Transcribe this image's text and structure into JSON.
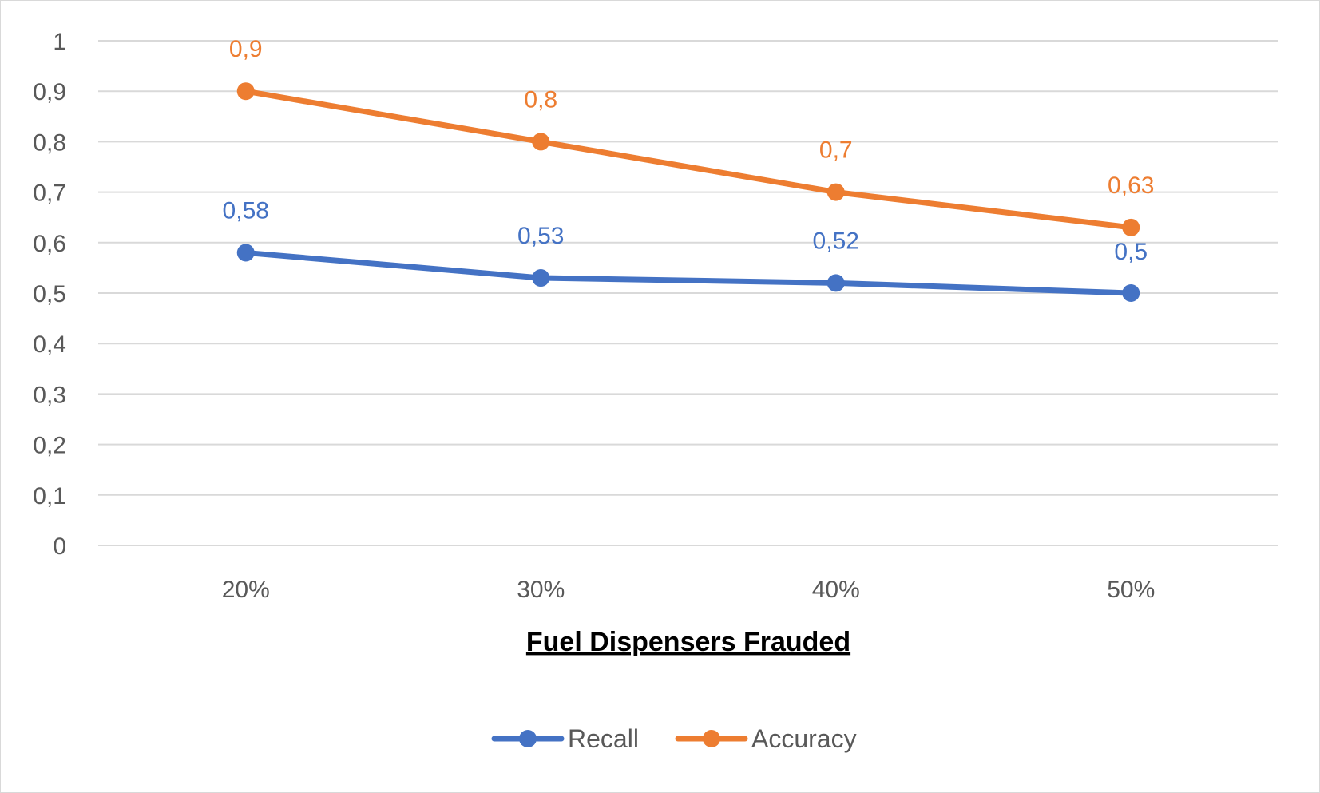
{
  "chart_data": {
    "type": "line",
    "title": "",
    "xlabel": "Fuel Dispensers Frauded",
    "ylabel": "",
    "categories": [
      "20%",
      "30%",
      "40%",
      "50%"
    ],
    "ylim": [
      0,
      1
    ],
    "yticks": [
      "0",
      "0,1",
      "0,2",
      "0,3",
      "0,4",
      "0,5",
      "0,6",
      "0,7",
      "0,8",
      "0,9",
      "1"
    ],
    "grid": true,
    "legend_position": "bottom",
    "series": [
      {
        "name": "Recall",
        "color": "#4472C4",
        "values": [
          0.58,
          0.53,
          0.52,
          0.5
        ],
        "labels": [
          "0,58",
          "0,53",
          "0,52",
          "0,5"
        ]
      },
      {
        "name": "Accuracy",
        "color": "#ED7D31",
        "values": [
          0.9,
          0.8,
          0.7,
          0.63
        ],
        "labels": [
          "0,9",
          "0,8",
          "0,7",
          "0,63"
        ]
      }
    ]
  }
}
